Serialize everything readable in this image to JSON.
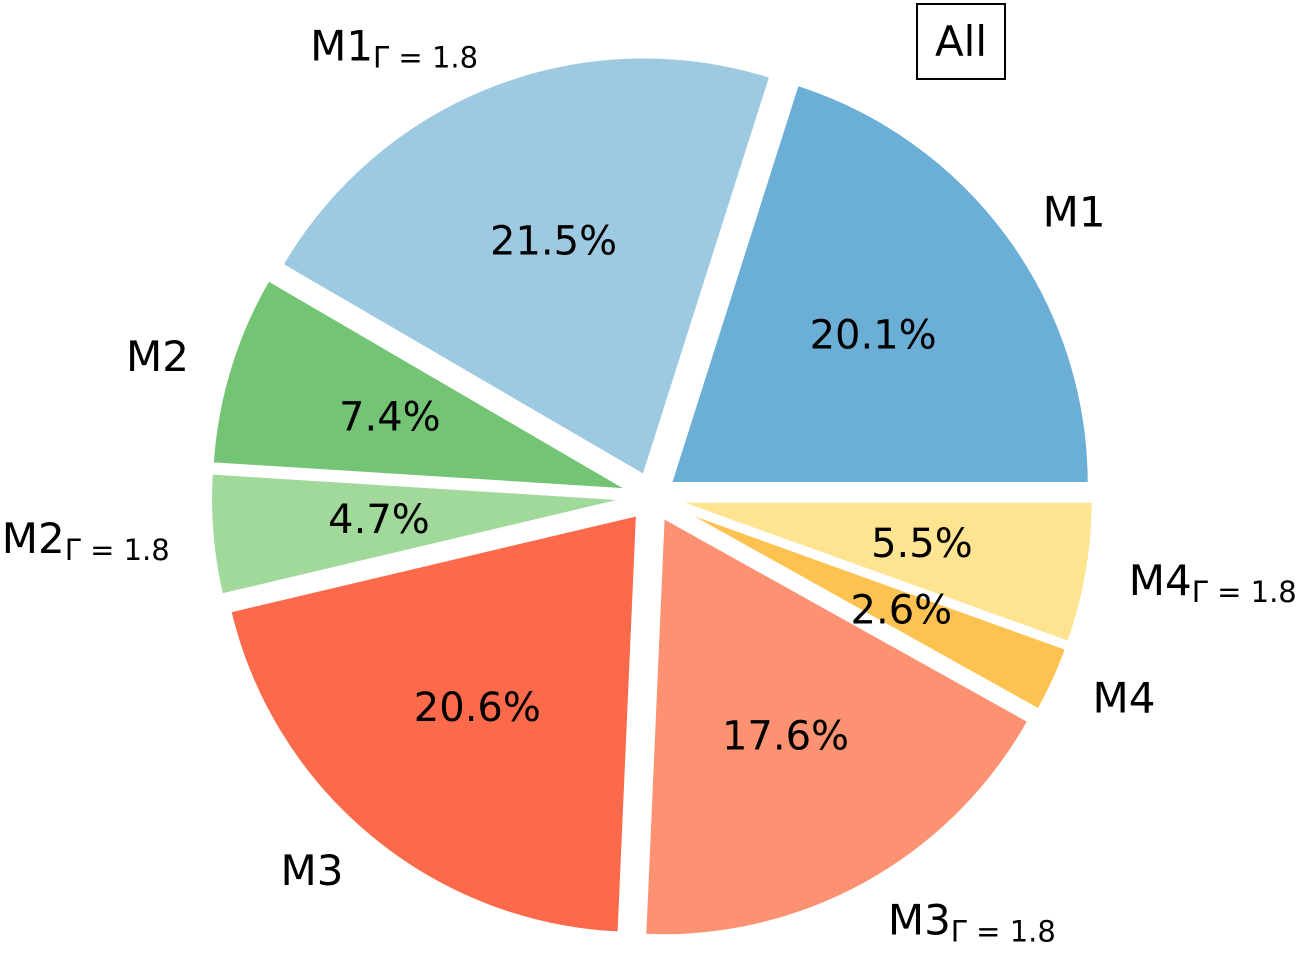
{
  "chart_data": {
    "type": "pie",
    "badge": "All",
    "slices": [
      {
        "label": "M1",
        "subscript": "",
        "value": 20.1,
        "pct_label": "20.1%",
        "color": "#6baed6"
      },
      {
        "label": "M1",
        "subscript": "Γ = 1.8",
        "value": 21.5,
        "pct_label": "21.5%",
        "color": "#9ecae1"
      },
      {
        "label": "M2",
        "subscript": "",
        "value": 7.4,
        "pct_label": "7.4%",
        "color": "#74c476"
      },
      {
        "label": "M2",
        "subscript": "Γ = 1.8",
        "value": 4.7,
        "pct_label": "4.7%",
        "color": "#a1d99b"
      },
      {
        "label": "M3",
        "subscript": "",
        "value": 20.6,
        "pct_label": "20.6%",
        "color": "#fc6a4b"
      },
      {
        "label": "M3",
        "subscript": "Γ = 1.8",
        "value": 17.6,
        "pct_label": "17.6%",
        "color": "#fc9272"
      },
      {
        "label": "M4",
        "subscript": "",
        "value": 2.6,
        "pct_label": "2.6%",
        "color": "#fec250"
      },
      {
        "label": "M4",
        "subscript": "Γ = 1.8",
        "value": 5.5,
        "pct_label": "5.5%",
        "color": "#fee391"
      }
    ]
  }
}
